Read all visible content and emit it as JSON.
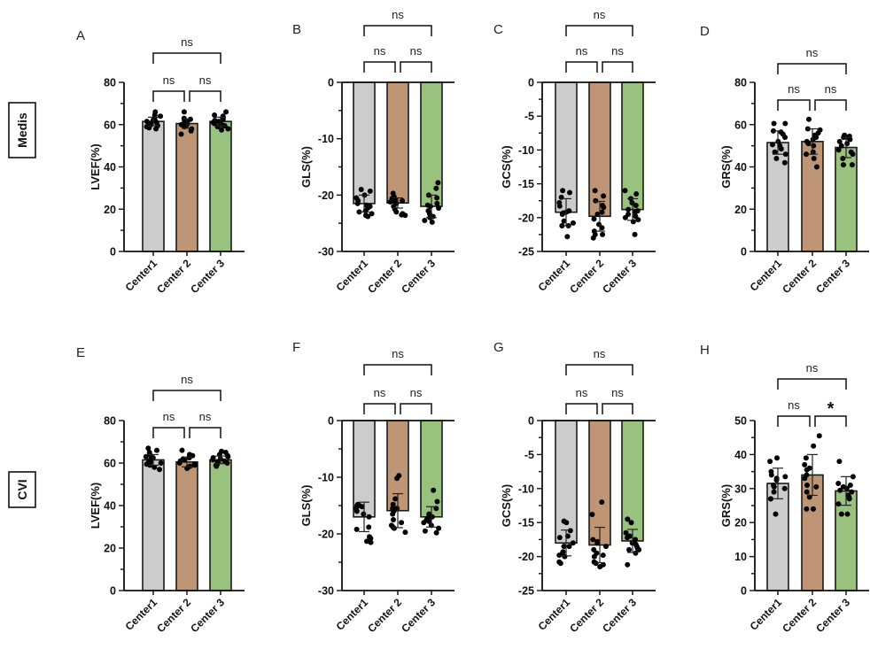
{
  "figure": {
    "row_labels": [
      "Medis",
      "CVI"
    ],
    "colors": {
      "Center1": "#cccccc",
      "Center 2": "#bf9675",
      "Center 3": "#99c27e",
      "outline": "#1a1a1a",
      "points": "#000000"
    }
  },
  "chart_data": [
    {
      "type": "bar",
      "panel": "A",
      "row": "Medis",
      "title": "",
      "xlabel": "",
      "ylabel": "LVEF(%)",
      "categories": [
        "Center1",
        "Center 2",
        "Center 3"
      ],
      "ylim": [
        0,
        80
      ],
      "yticks": [
        0,
        20,
        40,
        60,
        80
      ],
      "ytick_labels": [
        "0",
        "20",
        "40",
        "60",
        "80"
      ],
      "series": [
        {
          "name": "Center1",
          "mean": 61.5,
          "sd": 2.0,
          "points": [
            66,
            64.5,
            64,
            63,
            62.5,
            62,
            61.5,
            61,
            60.5,
            60,
            59.5,
            59,
            58.5,
            58
          ]
        },
        {
          "name": "Center 2",
          "mean": 60.5,
          "sd": 2.2,
          "points": [
            66,
            63,
            62.5,
            62,
            61.5,
            61,
            61,
            60.5,
            60,
            59.5,
            59,
            58,
            57,
            55.5
          ]
        },
        {
          "name": "Center 3",
          "mean": 61.5,
          "sd": 2.0,
          "points": [
            66,
            64.5,
            64,
            63,
            62.5,
            62,
            61.5,
            61,
            60.5,
            60,
            59.5,
            59,
            58,
            57.5
          ]
        }
      ],
      "comparisons": [
        {
          "groups": [
            "Center1",
            "Center 2"
          ],
          "label": "ns"
        },
        {
          "groups": [
            "Center 2",
            "Center 3"
          ],
          "label": "ns"
        },
        {
          "groups": [
            "Center1",
            "Center 3"
          ],
          "label": "ns"
        }
      ]
    },
    {
      "type": "bar",
      "panel": "B",
      "row": "Medis",
      "title": "",
      "xlabel": "",
      "ylabel": "GLS(%)",
      "categories": [
        "Center1",
        "Center 2",
        "Center 3"
      ],
      "ylim": [
        -30,
        0
      ],
      "yticks": [
        0,
        -10,
        -20,
        -30
      ],
      "ytick_labels": [
        "0",
        "-10",
        "-20",
        "-30"
      ],
      "series": [
        {
          "name": "Center1",
          "mean": -21.5,
          "sd": 1.5,
          "points": [
            -19,
            -19.3,
            -20,
            -20.5,
            -21,
            -21.5,
            -21.8,
            -22,
            -22.3,
            -22.8,
            -23,
            -23.3,
            -23.6,
            -23.8
          ]
        },
        {
          "name": "Center 2",
          "mean": -21.4,
          "sd": 0.9,
          "points": [
            -19.7,
            -20.3,
            -20.6,
            -20.8,
            -21,
            -21,
            -21.2,
            -21.5,
            -22,
            -22.5,
            -23,
            -23.3,
            -23.5,
            -23.6
          ]
        },
        {
          "name": "Center 3",
          "mean": -22.0,
          "sd": 2.0,
          "points": [
            -17.8,
            -18.8,
            -20,
            -20.5,
            -21.5,
            -21.8,
            -22,
            -22.3,
            -22.8,
            -23.3,
            -23.8,
            -24,
            -24.5,
            -24.8
          ]
        }
      ],
      "comparisons": [
        {
          "groups": [
            "Center1",
            "Center 2"
          ],
          "label": "ns"
        },
        {
          "groups": [
            "Center 2",
            "Center 3"
          ],
          "label": "ns"
        },
        {
          "groups": [
            "Center1",
            "Center 3"
          ],
          "label": "ns"
        }
      ]
    },
    {
      "type": "bar",
      "panel": "C",
      "row": "Medis",
      "title": "",
      "xlabel": "",
      "ylabel": "GCS(%)",
      "categories": [
        "Center1",
        "Center 2",
        "Center 3"
      ],
      "ylim": [
        -25,
        0
      ],
      "yticks": [
        0,
        -5,
        -10,
        -15,
        -20,
        -25
      ],
      "ytick_labels": [
        "0",
        "-5",
        "-10",
        "-15",
        "-20",
        "-25"
      ],
      "series": [
        {
          "name": "Center1",
          "mean": -19.2,
          "sd": 2.0,
          "points": [
            -16,
            -16.3,
            -17,
            -17.8,
            -18.3,
            -19,
            -19.2,
            -19.5,
            -20.5,
            -20.8,
            -21.2,
            -21.2,
            -22.8,
            -19.3
          ]
        },
        {
          "name": "Center 2",
          "mean": -19.8,
          "sd": 2.2,
          "points": [
            -16,
            -16.8,
            -17.5,
            -18.2,
            -18.5,
            -19.2,
            -19.5,
            -20.2,
            -21,
            -21.5,
            -22,
            -22.5,
            -22.5,
            -23
          ]
        },
        {
          "name": "Center 3",
          "mean": -18.8,
          "sd": 1.6,
          "points": [
            -16,
            -16.5,
            -17.2,
            -17.8,
            -18.2,
            -18.8,
            -19,
            -19.2,
            -19.5,
            -19.8,
            -20,
            -20.3,
            -20.6,
            -22.5
          ]
        }
      ],
      "comparisons": [
        {
          "groups": [
            "Center1",
            "Center 2"
          ],
          "label": "ns"
        },
        {
          "groups": [
            "Center 2",
            "Center 3"
          ],
          "label": "ns"
        },
        {
          "groups": [
            "Center1",
            "Center 3"
          ],
          "label": "ns"
        }
      ]
    },
    {
      "type": "bar",
      "panel": "D",
      "row": "Medis",
      "title": "",
      "xlabel": "",
      "ylabel": "GRS(%)",
      "categories": [
        "Center1",
        "Center 2",
        "Center 3"
      ],
      "ylim": [
        0,
        80
      ],
      "yticks": [
        0,
        20,
        40,
        60,
        80
      ],
      "ytick_labels": [
        "0",
        "20",
        "40",
        "60",
        "80"
      ],
      "series": [
        {
          "name": "Center1",
          "mean": 51.5,
          "sd": 5.5,
          "points": [
            60.5,
            60.5,
            57,
            56.5,
            55.5,
            54,
            52,
            50.5,
            50,
            48.5,
            47,
            46,
            44,
            42
          ]
        },
        {
          "name": "Center 2",
          "mean": 52.0,
          "sd": 6.0,
          "points": [
            62.5,
            58,
            57.5,
            56,
            55,
            54,
            53,
            52,
            51,
            50,
            47,
            46,
            44,
            40
          ]
        },
        {
          "name": "Center 3",
          "mean": 49.2,
          "sd": 4.8,
          "points": [
            55,
            54.5,
            54,
            53.5,
            53,
            52,
            51,
            50,
            48,
            47,
            46,
            44,
            41,
            41
          ]
        }
      ],
      "comparisons": [
        {
          "groups": [
            "Center1",
            "Center 2"
          ],
          "label": "ns"
        },
        {
          "groups": [
            "Center 2",
            "Center 3"
          ],
          "label": "ns"
        },
        {
          "groups": [
            "Center1",
            "Center 3"
          ],
          "label": "ns"
        }
      ]
    },
    {
      "type": "bar",
      "panel": "E",
      "row": "CVI",
      "title": "",
      "xlabel": "",
      "ylabel": "LVEF(%)",
      "categories": [
        "Center1",
        "Center 2",
        "Center 3"
      ],
      "ylim": [
        0,
        80
      ],
      "yticks": [
        0,
        20,
        40,
        60,
        80
      ],
      "ytick_labels": [
        "0",
        "20",
        "40",
        "60",
        "80"
      ],
      "series": [
        {
          "name": "Center1",
          "mean": 61.5,
          "sd": 2.5,
          "points": [
            67,
            66,
            65,
            64,
            63,
            62.5,
            62,
            61,
            60.5,
            60,
            59.5,
            59,
            58,
            57
          ]
        },
        {
          "name": "Center 2",
          "mean": 60.5,
          "sd": 2.3,
          "points": [
            66,
            64,
            63.5,
            63,
            62.5,
            62,
            61.5,
            61,
            60,
            59.5,
            59,
            58.5,
            58,
            57.5
          ]
        },
        {
          "name": "Center 3",
          "mean": 61.5,
          "sd": 1.8,
          "points": [
            65.5,
            65,
            64,
            63.5,
            63,
            62.5,
            62,
            61.5,
            61,
            60.5,
            60,
            59.5,
            59,
            58.5
          ]
        }
      ],
      "comparisons": [
        {
          "groups": [
            "Center1",
            "Center 2"
          ],
          "label": "ns"
        },
        {
          "groups": [
            "Center 2",
            "Center 3"
          ],
          "label": "ns"
        },
        {
          "groups": [
            "Center1",
            "Center 3"
          ],
          "label": "ns"
        }
      ]
    },
    {
      "type": "bar",
      "panel": "F",
      "row": "CVI",
      "title": "",
      "xlabel": "",
      "ylabel": "GLS(%)",
      "categories": [
        "Center1",
        "Center 2",
        "Center 3"
      ],
      "ylim": [
        -30,
        0
      ],
      "yticks": [
        0,
        -10,
        -20,
        -30
      ],
      "ytick_labels": [
        "0",
        "-10",
        "-20",
        "-30"
      ],
      "series": [
        {
          "name": "Center1",
          "mean": -17.0,
          "sd": 2.6,
          "points": [
            -14.8,
            -15,
            -15,
            -15.2,
            -15.5,
            -16,
            -16.5,
            -17,
            -18.8,
            -19.2,
            -20.5,
            -20.8,
            -21.3,
            -21.5
          ]
        },
        {
          "name": "Center 2",
          "mean": -15.9,
          "sd": 3.0,
          "points": [
            -9.7,
            -10.2,
            -13.8,
            -14.8,
            -15.5,
            -15.5,
            -16,
            -16.5,
            -17.5,
            -18,
            -18.5,
            -18.8,
            -19,
            -19.7
          ]
        },
        {
          "name": "Center 3",
          "mean": -17.0,
          "sd": 1.8,
          "points": [
            -12.3,
            -14.3,
            -15.5,
            -16.5,
            -17,
            -17,
            -17.2,
            -17.5,
            -17.8,
            -18,
            -18.5,
            -19,
            -19.5,
            -19.8
          ]
        }
      ],
      "comparisons": [
        {
          "groups": [
            "Center1",
            "Center 2"
          ],
          "label": "ns"
        },
        {
          "groups": [
            "Center 2",
            "Center 3"
          ],
          "label": "ns"
        },
        {
          "groups": [
            "Center1",
            "Center 3"
          ],
          "label": "ns"
        }
      ]
    },
    {
      "type": "bar",
      "panel": "G",
      "row": "CVI",
      "title": "",
      "xlabel": "",
      "ylabel": "GCS(%)",
      "categories": [
        "Center1",
        "Center 2",
        "Center 3"
      ],
      "ylim": [
        -25,
        0
      ],
      "yticks": [
        0,
        -5,
        -10,
        -15,
        -20,
        -25
      ],
      "ytick_labels": [
        "0",
        "-5",
        "-10",
        "-15",
        "-20",
        "-25"
      ],
      "series": [
        {
          "name": "Center1",
          "mean": -18.0,
          "sd": 1.9,
          "points": [
            -14.8,
            -15,
            -16.2,
            -17,
            -17.2,
            -18,
            -18.5,
            -18.5,
            -19.3,
            -19.5,
            -19.8,
            -20,
            -20.8,
            -21
          ]
        },
        {
          "name": "Center 2",
          "mean": -18.3,
          "sd": 2.6,
          "points": [
            -12,
            -13.8,
            -17.5,
            -17.8,
            -18,
            -18.5,
            -19,
            -19.5,
            -19.8,
            -20,
            -20.8,
            -21,
            -21.2,
            -21.5
          ]
        },
        {
          "name": "Center 3",
          "mean": -17.7,
          "sd": 1.7,
          "points": [
            -14.5,
            -15,
            -16.5,
            -17,
            -17.2,
            -17.5,
            -18,
            -18.2,
            -18.5,
            -18.8,
            -19,
            -19,
            -19.5,
            -21.2
          ]
        }
      ],
      "comparisons": [
        {
          "groups": [
            "Center1",
            "Center 2"
          ],
          "label": "ns"
        },
        {
          "groups": [
            "Center 2",
            "Center 3"
          ],
          "label": "ns"
        },
        {
          "groups": [
            "Center1",
            "Center 3"
          ],
          "label": "ns"
        }
      ]
    },
    {
      "type": "bar",
      "panel": "H",
      "row": "CVI",
      "title": "",
      "xlabel": "",
      "ylabel": "GRS(%)",
      "categories": [
        "Center1",
        "Center 2",
        "Center 3"
      ],
      "ylim": [
        0,
        50
      ],
      "yticks": [
        0,
        10,
        20,
        30,
        40,
        50
      ],
      "ytick_labels": [
        "0",
        "10",
        "20",
        "30",
        "40",
        "50"
      ],
      "series": [
        {
          "name": "Center1",
          "mean": 31.5,
          "sd": 4.5,
          "points": [
            39,
            38,
            35,
            34,
            33.5,
            33,
            32.5,
            31,
            30.5,
            30,
            29,
            27,
            27,
            22.5
          ]
        },
        {
          "name": "Center 2",
          "mean": 34.0,
          "sd": 6.0,
          "points": [
            45.5,
            42.5,
            39,
            37,
            36,
            35.5,
            34,
            33,
            31,
            30.5,
            29,
            27.5,
            24,
            24
          ]
        },
        {
          "name": "Center 3",
          "mean": 29.3,
          "sd": 4.2,
          "points": [
            38,
            33.5,
            31.5,
            31,
            30.5,
            30,
            29.5,
            29,
            28,
            27.5,
            27,
            25.5,
            22.5,
            22.5
          ]
        }
      ],
      "comparisons": [
        {
          "groups": [
            "Center1",
            "Center 2"
          ],
          "label": "ns"
        },
        {
          "groups": [
            "Center 2",
            "Center 3"
          ],
          "label": "*"
        },
        {
          "groups": [
            "Center1",
            "Center 3"
          ],
          "label": "ns"
        }
      ]
    }
  ]
}
